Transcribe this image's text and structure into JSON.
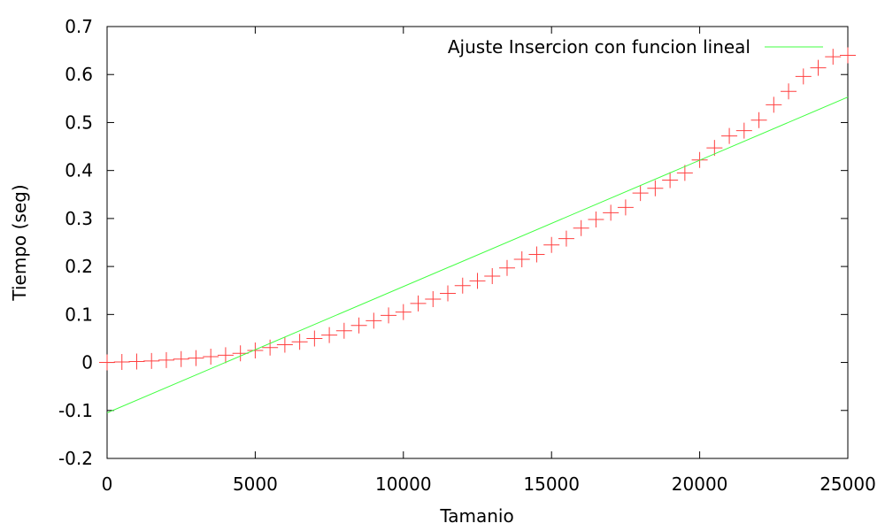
{
  "chart_data": {
    "type": "line",
    "title": "",
    "xlabel": "Tamanio",
    "ylabel": "Tiempo (seg)",
    "xlim": [
      0,
      25000
    ],
    "ylim": [
      -0.2,
      0.7
    ],
    "xticks": [
      0,
      5000,
      10000,
      15000,
      20000,
      25000
    ],
    "xtick_labels": [
      "0",
      "5000",
      "10000",
      "15000",
      "20000",
      "25000"
    ],
    "yticks": [
      -0.2,
      -0.1,
      0,
      0.1,
      0.2,
      0.3,
      0.4,
      0.5,
      0.6,
      0.7
    ],
    "ytick_labels": [
      "-0.2",
      "-0.1",
      "0",
      "0.1",
      "0.2",
      "0.3",
      "0.4",
      "0.5",
      "0.6",
      "0.7"
    ],
    "grid": false,
    "legend_position": "top-right",
    "series": [
      {
        "kind": "points",
        "marker": "plus",
        "color": "#ff4040",
        "x": [
          0,
          500,
          1000,
          1500,
          2000,
          2500,
          3000,
          3500,
          4000,
          4500,
          5000,
          5500,
          6000,
          6500,
          7000,
          7500,
          8000,
          8500,
          9000,
          9500,
          10000,
          10500,
          11000,
          11500,
          12000,
          12500,
          13000,
          13500,
          14000,
          14500,
          15000,
          15500,
          16000,
          16500,
          17000,
          17500,
          18000,
          18500,
          19000,
          19500,
          20000,
          20500,
          21000,
          21500,
          22000,
          22500,
          23000,
          23500,
          24000,
          24500,
          25000
        ],
        "y": [
          0.0,
          0.001,
          0.002,
          0.003,
          0.005,
          0.007,
          0.009,
          0.012,
          0.015,
          0.019,
          0.025,
          0.031,
          0.037,
          0.043,
          0.05,
          0.057,
          0.066,
          0.077,
          0.087,
          0.098,
          0.105,
          0.123,
          0.132,
          0.144,
          0.16,
          0.17,
          0.18,
          0.197,
          0.215,
          0.225,
          0.245,
          0.258,
          0.28,
          0.298,
          0.312,
          0.323,
          0.353,
          0.363,
          0.38,
          0.395,
          0.422,
          0.447,
          0.472,
          0.483,
          0.505,
          0.537,
          0.565,
          0.596,
          0.614,
          0.637,
          0.64
        ]
      },
      {
        "kind": "line",
        "name": "Ajuste Insercion con funcion lineal",
        "color": "#40ff40",
        "x": [
          0,
          25000
        ],
        "y": [
          -0.105,
          0.553
        ]
      }
    ]
  }
}
